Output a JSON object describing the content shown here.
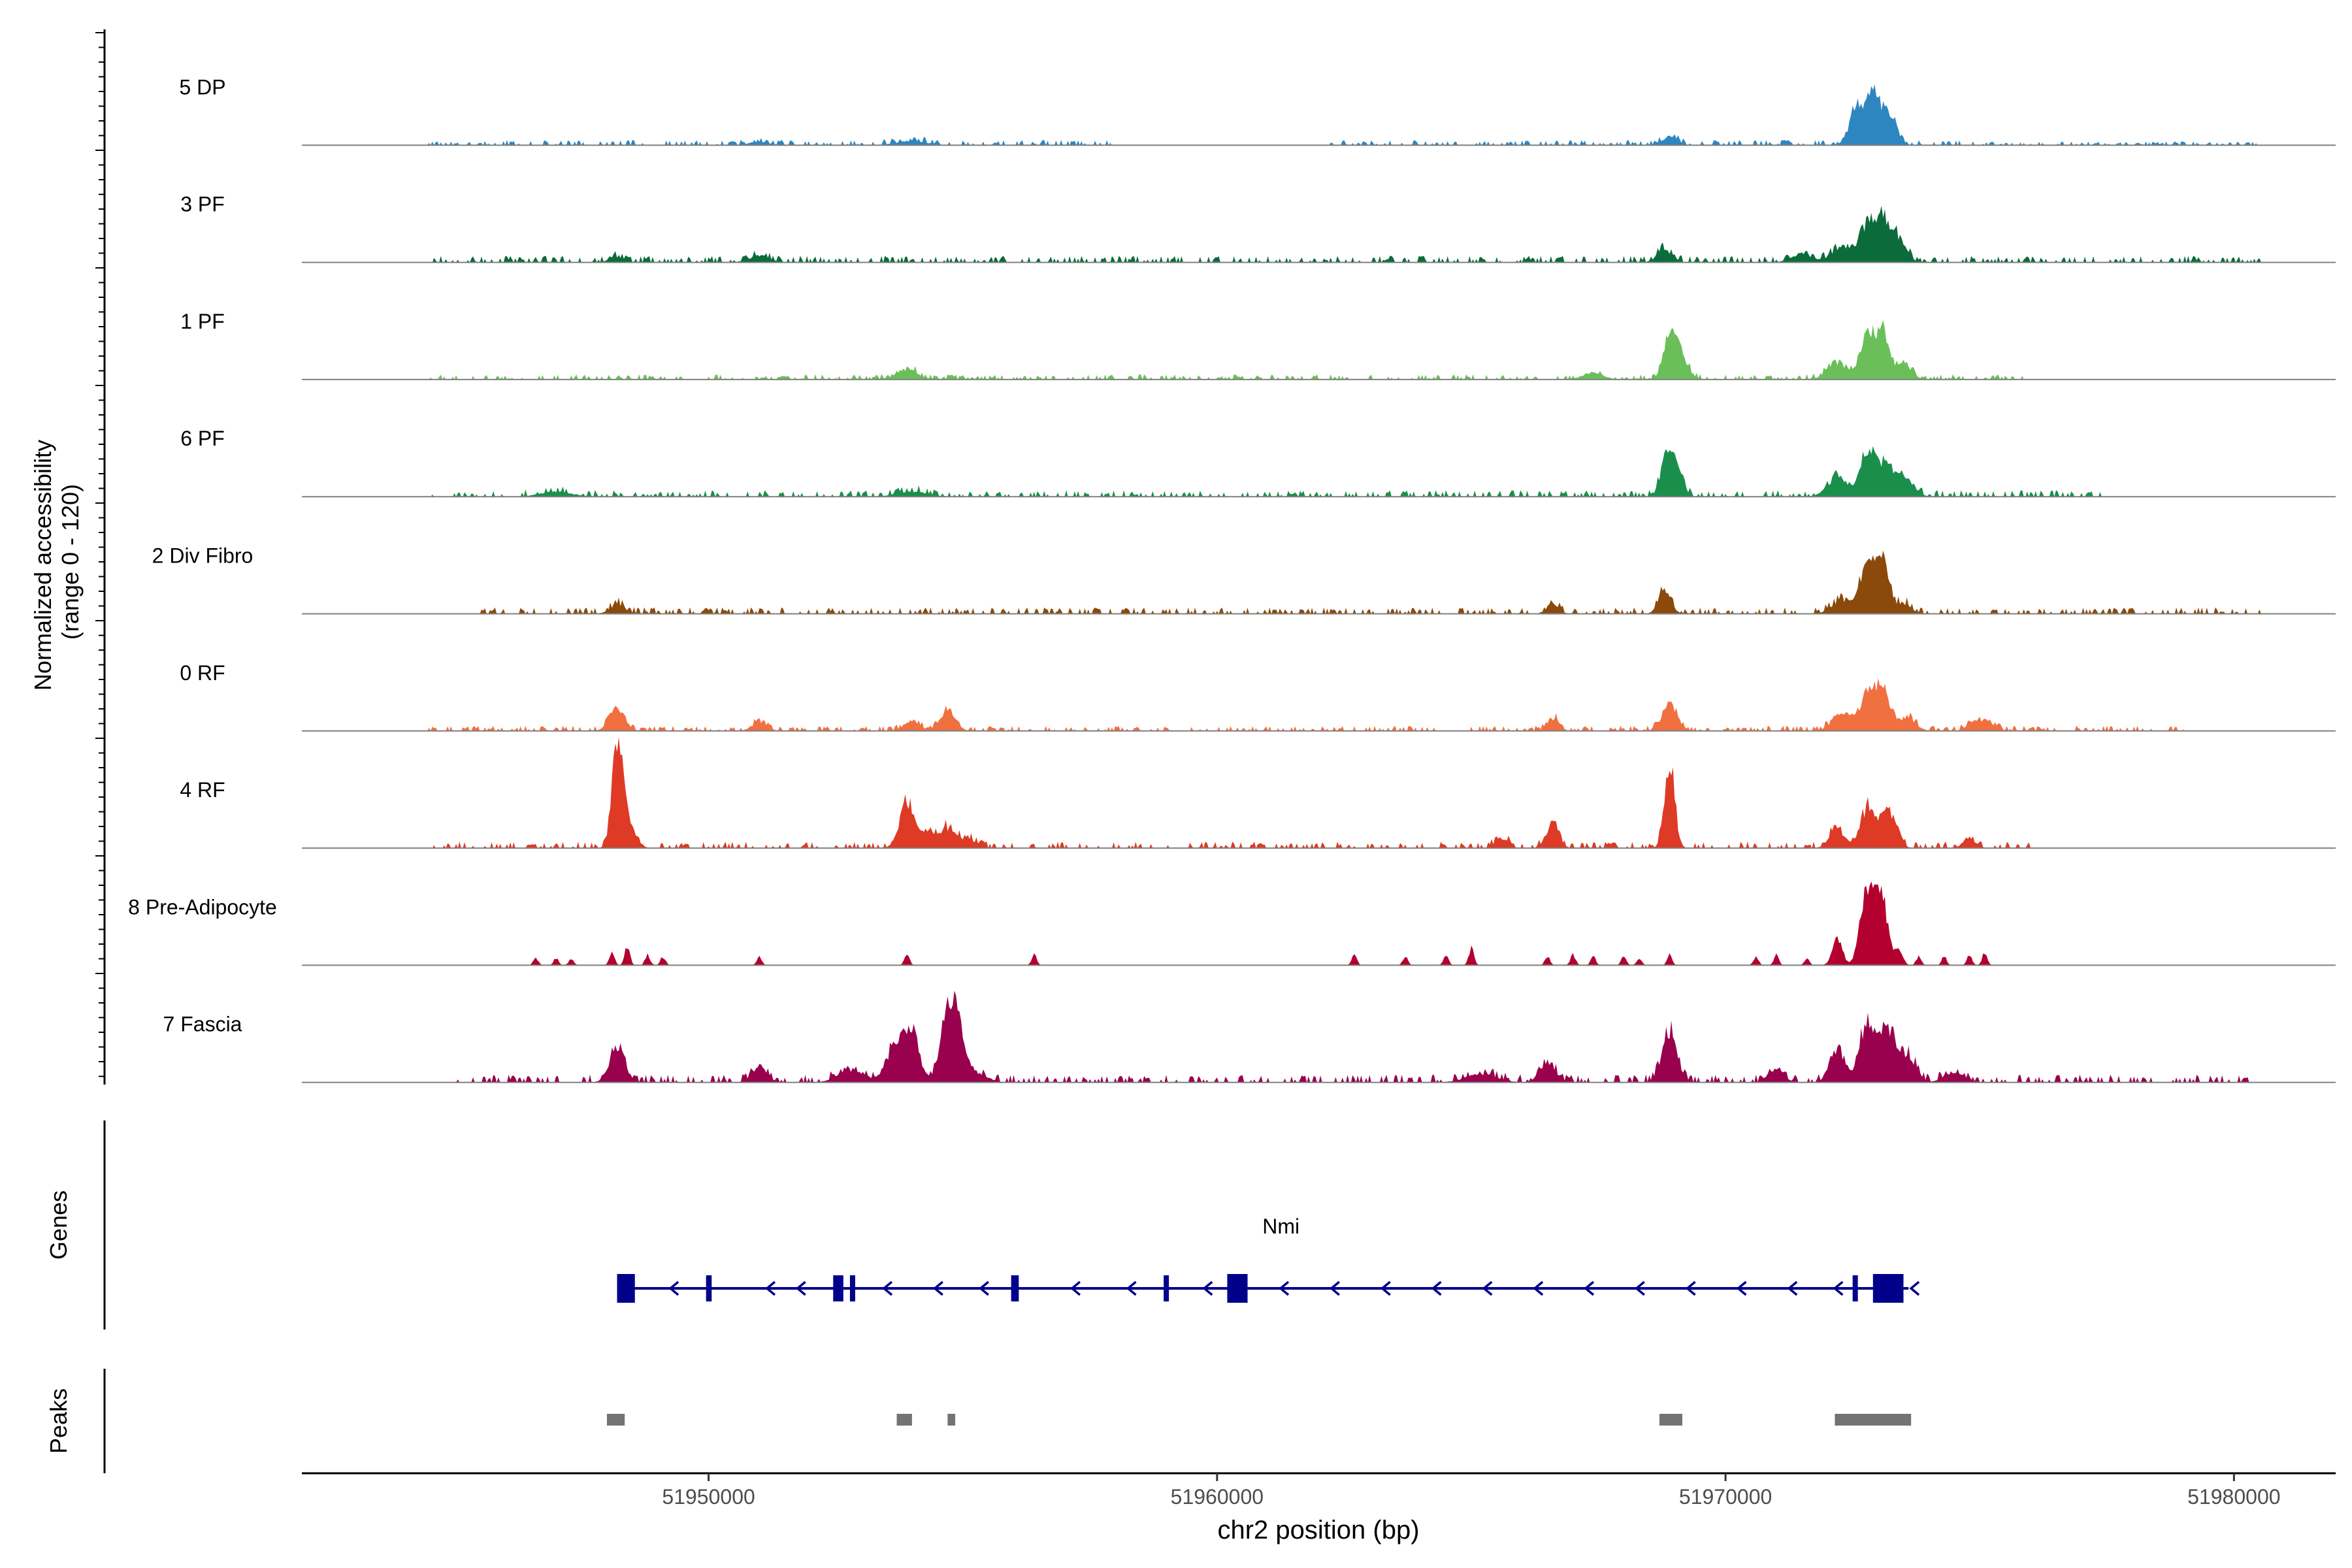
{
  "chart_data": {
    "type": "area",
    "title": "",
    "ylabel_line1": "Normalized accessibility",
    "ylabel_line2": "(range 0 - 120)",
    "yrange": [
      0,
      120
    ],
    "xlabel": "chr2 position (bp)",
    "xlim": [
      51942000,
      51982000
    ],
    "xticks": [
      51950000,
      51960000,
      51970000,
      51980000
    ],
    "xtick_labels": [
      "51950000",
      "51960000",
      "51970000",
      "51980000"
    ],
    "genes_label": "Genes",
    "peaks_label": "Peaks",
    "tracks": [
      {
        "name": "5 DP",
        "color": "#2e86c1",
        "noise": [
          [
            51944500,
            51958000,
            4
          ],
          [
            51962000,
            51975000,
            4
          ],
          [
            51975000,
            51980500,
            3
          ]
        ],
        "peaks": [
          [
            51968900,
            150,
            10
          ],
          [
            51972600,
            150,
            45
          ],
          [
            51972900,
            120,
            55
          ],
          [
            51973200,
            150,
            40
          ],
          [
            51954000,
            300,
            5
          ],
          [
            51951000,
            200,
            4
          ]
        ]
      },
      {
        "name": "3 PF",
        "color": "#0b6b3a",
        "noise": [
          [
            51944500,
            51980500,
            5
          ]
        ],
        "peaks": [
          [
            51951000,
            200,
            8
          ],
          [
            51948200,
            150,
            6
          ],
          [
            51968800,
            150,
            14
          ],
          [
            51972300,
            200,
            18
          ],
          [
            51972800,
            150,
            45
          ],
          [
            51973100,
            120,
            45
          ],
          [
            51973400,
            150,
            30
          ],
          [
            51971500,
            200,
            10
          ]
        ]
      },
      {
        "name": "1 PF",
        "color": "#6bbf59",
        "noise": [
          [
            51944500,
            51976000,
            4
          ]
        ],
        "peaks": [
          [
            51953900,
            200,
            12
          ],
          [
            51968900,
            120,
            45
          ],
          [
            51969100,
            150,
            30
          ],
          [
            51972200,
            200,
            20
          ],
          [
            51972800,
            150,
            50
          ],
          [
            51973100,
            120,
            50
          ],
          [
            51973500,
            150,
            20
          ],
          [
            51967400,
            200,
            8
          ]
        ]
      },
      {
        "name": "6 PF",
        "color": "#1a8f4b",
        "noise": [
          [
            51944500,
            51977500,
            5
          ]
        ],
        "peaks": [
          [
            51968850,
            120,
            45
          ],
          [
            51969050,
            120,
            30
          ],
          [
            51972200,
            200,
            22
          ],
          [
            51972800,
            150,
            50
          ],
          [
            51973200,
            200,
            35
          ],
          [
            51973600,
            150,
            15
          ],
          [
            51947000,
            300,
            6
          ],
          [
            51954000,
            300,
            6
          ]
        ]
      },
      {
        "name": "2 Div Fibro",
        "color": "#8b4a0b",
        "noise": [
          [
            51945500,
            51980500,
            5
          ]
        ],
        "peaks": [
          [
            51948200,
            150,
            10
          ],
          [
            51966600,
            120,
            12
          ],
          [
            51968800,
            120,
            28
          ],
          [
            51972300,
            200,
            15
          ],
          [
            51972800,
            150,
            60
          ],
          [
            51973100,
            120,
            55
          ],
          [
            51973500,
            150,
            12
          ]
        ]
      },
      {
        "name": "0 RF",
        "color": "#f07040",
        "noise": [
          [
            51944500,
            51979000,
            4
          ]
        ],
        "peaks": [
          [
            51948200,
            150,
            28
          ],
          [
            51951000,
            150,
            10
          ],
          [
            51954000,
            150,
            12
          ],
          [
            51954700,
            150,
            22
          ],
          [
            51966600,
            120,
            15
          ],
          [
            51968900,
            150,
            30
          ],
          [
            51972300,
            200,
            20
          ],
          [
            51972800,
            150,
            40
          ],
          [
            51973100,
            150,
            45
          ],
          [
            51973600,
            150,
            15
          ],
          [
            51974900,
            150,
            10
          ],
          [
            51975200,
            150,
            8
          ]
        ]
      },
      {
        "name": "4 RF",
        "color": "#de3a25",
        "noise": [
          [
            51944500,
            51976000,
            5
          ]
        ],
        "peaks": [
          [
            51948200,
            100,
            120
          ],
          [
            51948400,
            150,
            30
          ],
          [
            51953900,
            150,
            50
          ],
          [
            51954300,
            150,
            18
          ],
          [
            51954700,
            150,
            22
          ],
          [
            51955100,
            150,
            12
          ],
          [
            51965600,
            120,
            12
          ],
          [
            51966600,
            120,
            30
          ],
          [
            51968900,
            100,
            95
          ],
          [
            51972200,
            150,
            22
          ],
          [
            51972800,
            150,
            45
          ],
          [
            51973200,
            150,
            45
          ],
          [
            51974800,
            120,
            12
          ]
        ]
      },
      {
        "name": "8 Pre-Adipocyte",
        "color": "#b3002e",
        "noise": [],
        "peaks": [
          [
            51946600,
            50,
            8
          ],
          [
            51947000,
            50,
            8
          ],
          [
            51947300,
            50,
            8
          ],
          [
            51948100,
            50,
            15
          ],
          [
            51948400,
            50,
            22
          ],
          [
            51948800,
            50,
            12
          ],
          [
            51949100,
            50,
            10
          ],
          [
            51951000,
            50,
            10
          ],
          [
            51953900,
            50,
            15
          ],
          [
            51956400,
            50,
            12
          ],
          [
            51962700,
            50,
            12
          ],
          [
            51963700,
            50,
            10
          ],
          [
            51964500,
            50,
            12
          ],
          [
            51965000,
            50,
            20
          ],
          [
            51966500,
            50,
            10
          ],
          [
            51967000,
            50,
            12
          ],
          [
            51967400,
            50,
            10
          ],
          [
            51968000,
            50,
            10
          ],
          [
            51968300,
            50,
            8
          ],
          [
            51968900,
            50,
            12
          ],
          [
            51970600,
            50,
            10
          ],
          [
            51971000,
            50,
            12
          ],
          [
            51971600,
            50,
            8
          ],
          [
            51972200,
            100,
            30
          ],
          [
            51972700,
            100,
            60
          ],
          [
            51972900,
            100,
            85
          ],
          [
            51973100,
            100,
            70
          ],
          [
            51973400,
            80,
            20
          ],
          [
            51973800,
            50,
            10
          ],
          [
            51974300,
            50,
            10
          ],
          [
            51974800,
            50,
            12
          ],
          [
            51975100,
            50,
            15
          ]
        ]
      },
      {
        "name": "7 Fascia",
        "color": "#99004d",
        "noise": [
          [
            51945000,
            51980500,
            6
          ]
        ],
        "peaks": [
          [
            51948200,
            150,
            40
          ],
          [
            51951000,
            150,
            18
          ],
          [
            51953700,
            200,
            40
          ],
          [
            51954000,
            150,
            50
          ],
          [
            51954700,
            150,
            70
          ],
          [
            51954900,
            150,
            55
          ],
          [
            51952800,
            250,
            15
          ],
          [
            51955300,
            200,
            10
          ],
          [
            51966500,
            150,
            25
          ],
          [
            51968900,
            150,
            55
          ],
          [
            51971000,
            150,
            15
          ],
          [
            51972200,
            150,
            40
          ],
          [
            51972800,
            150,
            70
          ],
          [
            51973200,
            150,
            60
          ],
          [
            51973600,
            150,
            30
          ],
          [
            51974500,
            200,
            12
          ],
          [
            51965200,
            300,
            10
          ]
        ]
      }
    ],
    "gene": {
      "name": "Nmi",
      "strand": "-",
      "start": 51948400,
      "end": 51973600,
      "exons": [
        [
          51948200,
          51948550
        ],
        [
          51949950,
          51950060
        ],
        [
          51952450,
          51952650
        ],
        [
          51952780,
          51952880
        ],
        [
          51955950,
          51956100
        ],
        [
          51958950,
          51959030
        ],
        [
          51960200,
          51960600
        ],
        [
          51972500,
          51972560
        ],
        [
          51972900,
          51973500
        ]
      ],
      "arrows": [
        51949300,
        51951200,
        51951800,
        51953500,
        51954500,
        51955400,
        51957200,
        51958300,
        51959800,
        51961300,
        51962300,
        51963300,
        51964300,
        51965300,
        51966300,
        51967300,
        51968300,
        51969300,
        51970300,
        51971300,
        51972200,
        51973700
      ]
    },
    "peak_regions": [
      [
        51948000,
        51948350
      ],
      [
        51953700,
        51954000
      ],
      [
        51954700,
        51954850
      ],
      [
        51968700,
        51969150
      ],
      [
        51972150,
        51973650
      ]
    ]
  }
}
